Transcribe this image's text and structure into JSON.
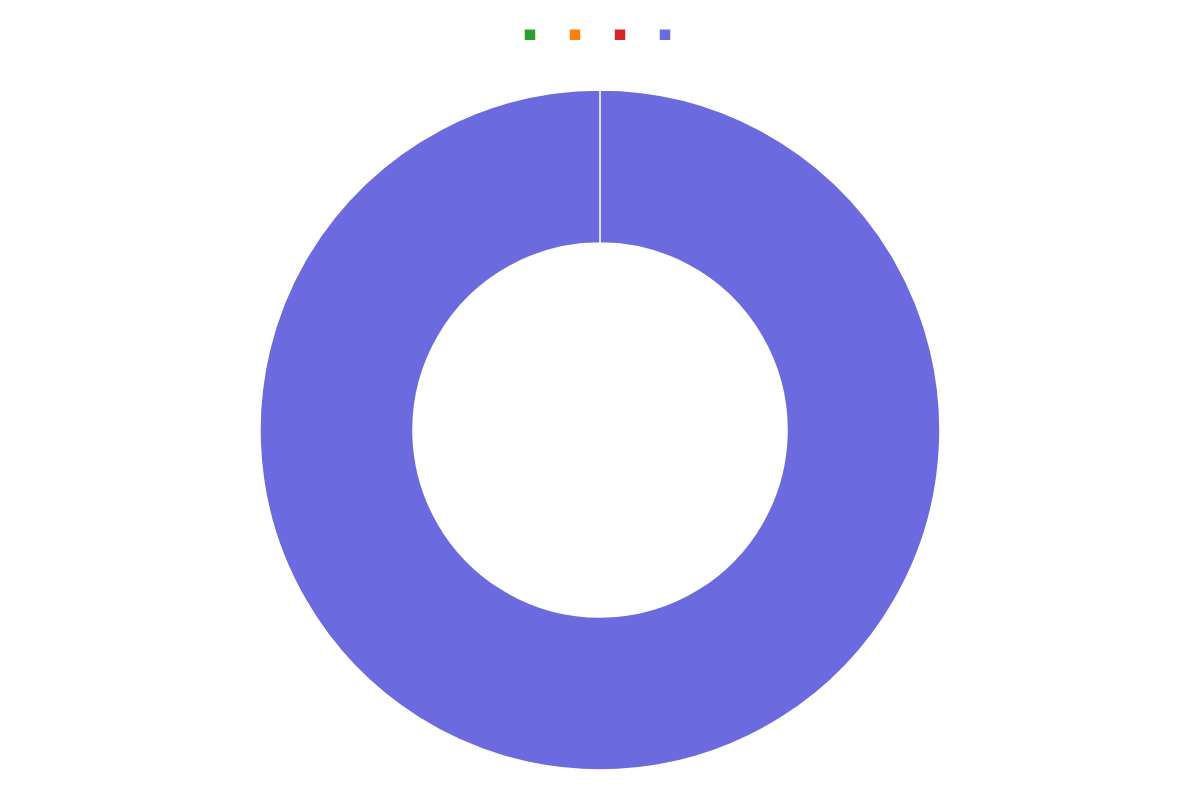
{
  "chart_data": {
    "type": "donut",
    "categories": [
      null,
      null,
      null,
      null
    ],
    "values": [
      0.001,
      0.001,
      0.001,
      99.997
    ],
    "colors": [
      "#2ca02c",
      "#ff7f0e",
      "#d62728",
      "#6b6bdf"
    ],
    "legend": "top"
  }
}
